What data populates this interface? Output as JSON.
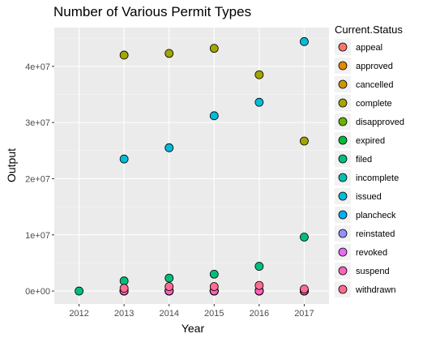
{
  "chart_data": {
    "type": "scatter",
    "title": "Number of Various Permit Types",
    "xlabel": "Year",
    "ylabel": "Output",
    "x_ticks": [
      2012,
      2013,
      2014,
      2015,
      2016,
      2017
    ],
    "x_tick_labels": [
      "2012",
      "2013",
      "2014",
      "2015",
      "2016",
      "2017"
    ],
    "y_ticks": [
      0,
      10000000,
      20000000,
      30000000,
      40000000
    ],
    "y_tick_labels": [
      "0e+00",
      "1e+07",
      "2e+07",
      "3e+07",
      "4e+07"
    ],
    "xlim": [
      2011.45,
      2017.55
    ],
    "ylim": [
      -2300000,
      46900000
    ],
    "grid": true,
    "legend_position": "right",
    "legend_title": "Current.Status",
    "series": [
      {
        "name": "appeal",
        "color": "#F8766D",
        "x": [
          2013,
          2014,
          2015,
          2016,
          2017
        ],
        "y": [
          10000,
          15000,
          12000,
          10000,
          10000
        ]
      },
      {
        "name": "approved",
        "color": "#E58700",
        "x": [
          2013,
          2014,
          2015,
          2016,
          2017
        ],
        "y": [
          20000,
          25000,
          20000,
          20000,
          15000
        ]
      },
      {
        "name": "cancelled",
        "color": "#C99800",
        "x": [
          2013,
          2014,
          2015,
          2016,
          2017
        ],
        "y": [
          30000,
          40000,
          35000,
          30000,
          25000
        ]
      },
      {
        "name": "complete",
        "color": "#A3A500",
        "x": [
          2013,
          2014,
          2015,
          2016,
          2017
        ],
        "y": [
          42000000,
          42300000,
          43200000,
          38500000,
          26700000
        ]
      },
      {
        "name": "disapproved",
        "color": "#6BB100",
        "x": [
          2013,
          2014,
          2015,
          2016,
          2017
        ],
        "y": [
          5000,
          5000,
          5000,
          5000,
          5000
        ]
      },
      {
        "name": "expired",
        "color": "#00BA38",
        "x": [
          2013,
          2014,
          2015,
          2016,
          2017
        ],
        "y": [
          60000,
          70000,
          65000,
          80000,
          50000
        ]
      },
      {
        "name": "filed",
        "color": "#00BF7D",
        "x": [
          2012,
          2013,
          2014,
          2015,
          2016,
          2017
        ],
        "y": [
          0,
          1800000,
          2300000,
          3000000,
          4400000,
          9600000
        ]
      },
      {
        "name": "incomplete",
        "color": "#00C0AF",
        "x": [
          2013,
          2014,
          2015,
          2016,
          2017
        ],
        "y": [
          10000,
          10000,
          10000,
          10000,
          10000
        ]
      },
      {
        "name": "issued",
        "color": "#00BCD8",
        "x": [
          2013,
          2014,
          2015,
          2016,
          2017
        ],
        "y": [
          23500000,
          25500000,
          31200000,
          33600000,
          44400000
        ]
      },
      {
        "name": "plancheck",
        "color": "#00B0F6",
        "x": [
          2013,
          2014,
          2015,
          2016,
          2017
        ],
        "y": [
          15000,
          15000,
          15000,
          15000,
          15000
        ]
      },
      {
        "name": "reinstated",
        "color": "#9590FF",
        "x": [
          2013,
          2014,
          2015,
          2016,
          2017
        ],
        "y": [
          5000,
          5000,
          5000,
          5000,
          5000
        ]
      },
      {
        "name": "revoked",
        "color": "#E76BF3",
        "x": [
          2013,
          2014,
          2015,
          2016,
          2017
        ],
        "y": [
          5000,
          5000,
          5000,
          5000,
          5000
        ]
      },
      {
        "name": "suspend",
        "color": "#FF62BC",
        "x": [
          2013,
          2014,
          2015,
          2016,
          2017
        ],
        "y": [
          20000,
          25000,
          20000,
          30000,
          20000
        ]
      },
      {
        "name": "withdrawn",
        "color": "#FF6C91",
        "x": [
          2013,
          2014,
          2015,
          2016,
          2017
        ],
        "y": [
          500000,
          800000,
          800000,
          1000000,
          350000
        ]
      }
    ]
  },
  "styles": {
    "panel_bg": "#EBEBEB",
    "grid_major": "#FFFFFF",
    "grid_minor": "#F5F5F5",
    "legend_key_bg": "#F2F2F2",
    "point_stroke": "#000000"
  }
}
